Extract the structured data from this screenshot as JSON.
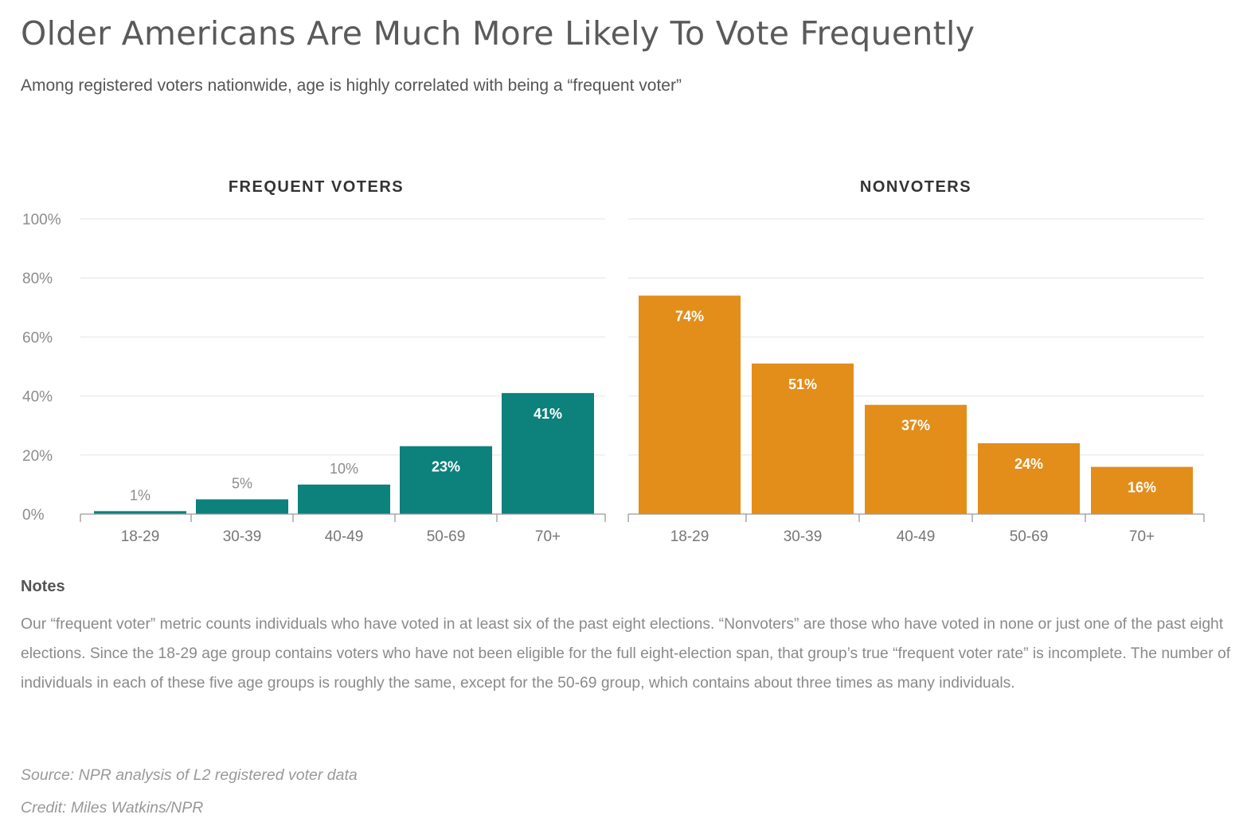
{
  "title": "Older Americans Are Much More Likely To Vote Frequently",
  "subtitle": "Among registered voters nationwide, age is highly correlated with being a “frequent voter”",
  "notes": {
    "heading": "Notes",
    "text": "Our “frequent voter” metric counts individuals who have voted in at least six of the past eight elections. “Nonvoters” are those who have voted in none or just one of the past eight elections. Since the 18-29 age group contains voters who have not been eligible for the full eight-election span, that group’s true “frequent voter rate” is incomplete. The number of individuals in each of these five age groups is roughly the same, except for the 50-69 group, which contains about three times as many individuals."
  },
  "source": "Source: NPR analysis of L2 registered voter data",
  "credit": "Credit: Miles Watkins/NPR",
  "chart_data": [
    {
      "type": "bar",
      "title": "FREQUENT VOTERS",
      "categories": [
        "18-29",
        "30-39",
        "40-49",
        "50-69",
        "70+"
      ],
      "values": [
        1,
        5,
        10,
        23,
        41
      ],
      "data_labels": [
        "1%",
        "5%",
        "10%",
        "23%",
        "41%"
      ],
      "ylim": [
        0,
        100
      ],
      "yticks": [
        "0%",
        "20%",
        "40%",
        "60%",
        "80%",
        "100%"
      ],
      "color": "#0d817c",
      "grid": true
    },
    {
      "type": "bar",
      "title": "NONVOTERS",
      "categories": [
        "18-29",
        "30-39",
        "40-49",
        "50-69",
        "70+"
      ],
      "values": [
        74,
        51,
        37,
        24,
        16
      ],
      "data_labels": [
        "74%",
        "51%",
        "37%",
        "24%",
        "16%"
      ],
      "ylim": [
        0,
        100
      ],
      "color": "#e38d1b",
      "grid": true
    }
  ]
}
